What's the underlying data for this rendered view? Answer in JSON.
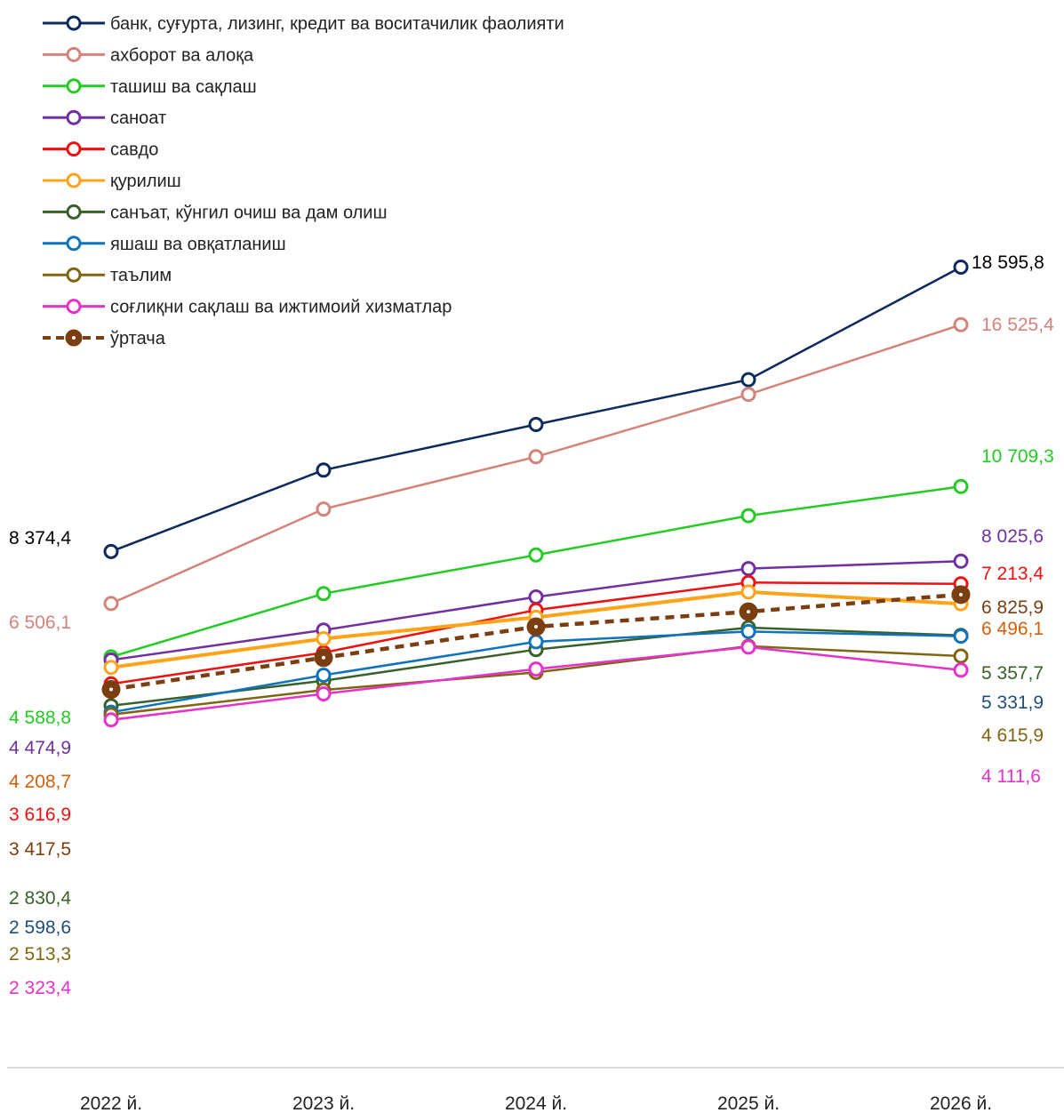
{
  "chart_data": {
    "type": "line",
    "categories": [
      "2022 й.",
      "2023 й.",
      "2024 й.",
      "2025 й.",
      "2026 й."
    ],
    "ylim": [
      0,
      20000
    ],
    "grid": false,
    "legend_position": "top-left",
    "series": [
      {
        "name": "банк, суғурта, лизинг, кредит ва воситачилик фаолияти",
        "color": "#0d2a5e",
        "values": [
          8374.4,
          11300,
          12940,
          14550,
          18595.8
        ],
        "labels": [
          "8 374,4",
          "",
          "",
          "",
          "18 595,8"
        ],
        "label_color": "#000000"
      },
      {
        "name": "ахборот ва алоқа",
        "color": "#d4837a",
        "values": [
          6506.1,
          9900,
          11780,
          14020,
          16525.4
        ],
        "labels": [
          "6 506,1",
          "",
          "",
          "",
          "16 525,4"
        ],
        "label_color": "#d4837a"
      },
      {
        "name": "ташиш ва сақлаш",
        "color": "#22cc22",
        "values": [
          4588.8,
          6860,
          8250,
          9660,
          10709.3
        ],
        "labels": [
          "4 588,8",
          "",
          "",
          "",
          "10 709,3"
        ],
        "label_color": "#22cc22"
      },
      {
        "name": "саноат",
        "color": "#7030a0",
        "values": [
          4474.9,
          5550,
          6740,
          7760,
          8025.6
        ],
        "labels": [
          "4 474,9",
          "",
          "",
          "",
          "8 025,6"
        ],
        "label_color": "#7030a0"
      },
      {
        "name": "савдо",
        "color": "#ee1111",
        "values": [
          3616.9,
          4740,
          6270,
          7260,
          7213.4
        ],
        "labels": [
          "3 616,9",
          "",
          "",
          "",
          "7 213,4"
        ],
        "label_color": "#ee1111"
      },
      {
        "name": "қурилиш",
        "color": "#ffa319",
        "values": [
          4208.7,
          5240,
          6010,
          6920,
          6496.1
        ],
        "labels": [
          "4 208,7",
          "",
          "",
          "",
          "6 496,1"
        ],
        "label_color": "#d35f0a"
      },
      {
        "name": "санъат, кўнгил очиш ва дам олиш",
        "color": "#38612a",
        "values": [
          2830.4,
          3730,
          4850,
          5640,
          5357.7
        ],
        "labels": [
          "2 830,4",
          "",
          "",
          "",
          "5 357,7"
        ],
        "label_color": "#38612a"
      },
      {
        "name": "яшаш ва овқатланиш",
        "color": "#0f72bd",
        "values": [
          2598.6,
          3930,
          5130,
          5500,
          5331.9
        ],
        "labels": [
          "2 598,6",
          "",
          "",
          "",
          "5 331,9"
        ],
        "label_color": "#1f4e79"
      },
      {
        "name": "таълим",
        "color": "#7f6512",
        "values": [
          2513.3,
          3400,
          4030,
          4970,
          4615.9
        ],
        "labels": [
          "2 513,3",
          "",
          "",
          "",
          "4 615,9"
        ],
        "label_color": "#7f6512"
      },
      {
        "name": "соғлиқни сақлаш ва ижтимоий хизматлар",
        "color": "#e632c8",
        "values": [
          2323.4,
          3260,
          4150,
          4940,
          4111.6
        ],
        "labels": [
          "2 323,4",
          "",
          "",
          "",
          "4 111,6"
        ],
        "label_color": "#e632c8"
      },
      {
        "name": "ўртача",
        "color": "#7a3e10",
        "values": [
          3417.5,
          4560,
          5670,
          6210,
          6825.9
        ],
        "labels": [
          "3 417,5",
          "",
          "",
          "",
          "6 825,9"
        ],
        "label_color": "#7a3e10",
        "dashed": true
      }
    ]
  }
}
